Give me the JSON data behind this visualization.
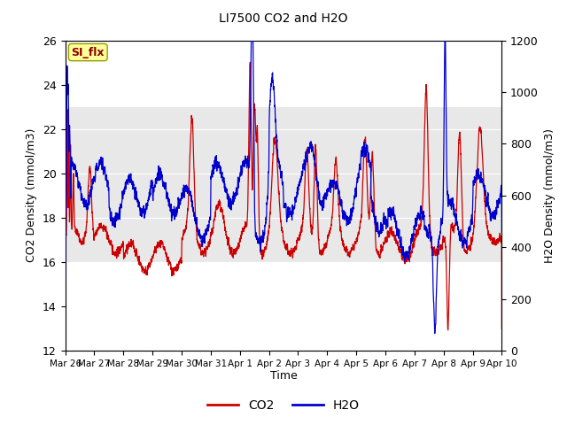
{
  "title": "LI7500 CO2 and H2O",
  "xlabel": "Time",
  "ylabel_left": "CO2 Density (mmol/m3)",
  "ylabel_right": "H2O Density (mmol/m3)",
  "ylim_co2": [
    12,
    26
  ],
  "ylim_h2o": [
    0,
    1200
  ],
  "x_tick_labels": [
    "Mar 26",
    "Mar 27",
    "Mar 28",
    "Mar 29",
    "Mar 30",
    "Mar 31",
    "Apr 1",
    "Apr 2",
    "Apr 3",
    "Apr 4",
    "Apr 5",
    "Apr 6",
    "Apr 7",
    "Apr 8",
    "Apr 9",
    "Apr 10"
  ],
  "x_tick_positions": [
    0,
    1,
    2,
    3,
    4,
    5,
    6,
    7,
    8,
    9,
    10,
    11,
    12,
    13,
    14,
    15
  ],
  "co2_color": "#CC0000",
  "h2o_color": "#0000CC",
  "linewidth": 0.9,
  "legend_label_co2": "CO2",
  "legend_label_h2o": "H2O",
  "annotation_text": "SI_flx",
  "plot_bg_color": "#FFFFFF",
  "band_color": "#E8E8E8",
  "band_ymin": 16,
  "band_ymax": 23,
  "outer_bg": "#FFFFFF"
}
